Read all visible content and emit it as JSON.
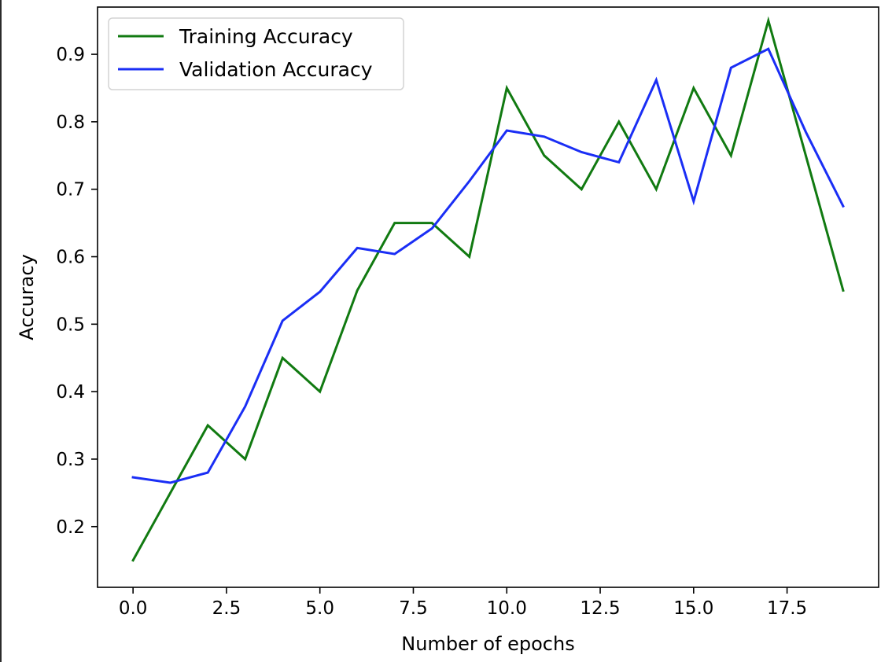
{
  "chart_data": {
    "type": "line",
    "xlabel": "Number of epochs",
    "ylabel": "Accuracy",
    "xlim": [
      -0.95,
      19.95
    ],
    "ylim": [
      0.11,
      0.97
    ],
    "xticks": [
      0.0,
      2.5,
      5.0,
      7.5,
      10.0,
      12.5,
      15.0,
      17.5
    ],
    "xtick_labels": [
      "0.0",
      "2.5",
      "5.0",
      "7.5",
      "10.0",
      "12.5",
      "15.0",
      "17.5"
    ],
    "yticks": [
      0.2,
      0.3,
      0.4,
      0.5,
      0.6,
      0.7,
      0.8,
      0.9
    ],
    "ytick_labels": [
      "0.2",
      "0.3",
      "0.4",
      "0.5",
      "0.6",
      "0.7",
      "0.8",
      "0.9"
    ],
    "grid": false,
    "legend_position": "top-left",
    "x": [
      0,
      1,
      2,
      3,
      4,
      5,
      6,
      7,
      8,
      9,
      10,
      11,
      12,
      13,
      14,
      15,
      16,
      17,
      18,
      19
    ],
    "series": [
      {
        "name": "Training Accuracy",
        "color": "#117a11",
        "values": [
          0.15,
          0.25,
          0.35,
          0.3,
          0.45,
          0.4,
          0.55,
          0.65,
          0.65,
          0.6,
          0.85,
          0.75,
          0.7,
          0.8,
          0.7,
          0.85,
          0.75,
          0.95,
          0.75,
          0.55
        ]
      },
      {
        "name": "Validation Accuracy",
        "color": "#1a2ef5",
        "values": [
          0.273,
          0.265,
          0.28,
          0.378,
          0.505,
          0.548,
          0.613,
          0.604,
          0.642,
          0.712,
          0.787,
          0.778,
          0.755,
          0.74,
          0.862,
          0.682,
          0.88,
          0.908,
          0.785,
          0.675
        ]
      }
    ]
  }
}
